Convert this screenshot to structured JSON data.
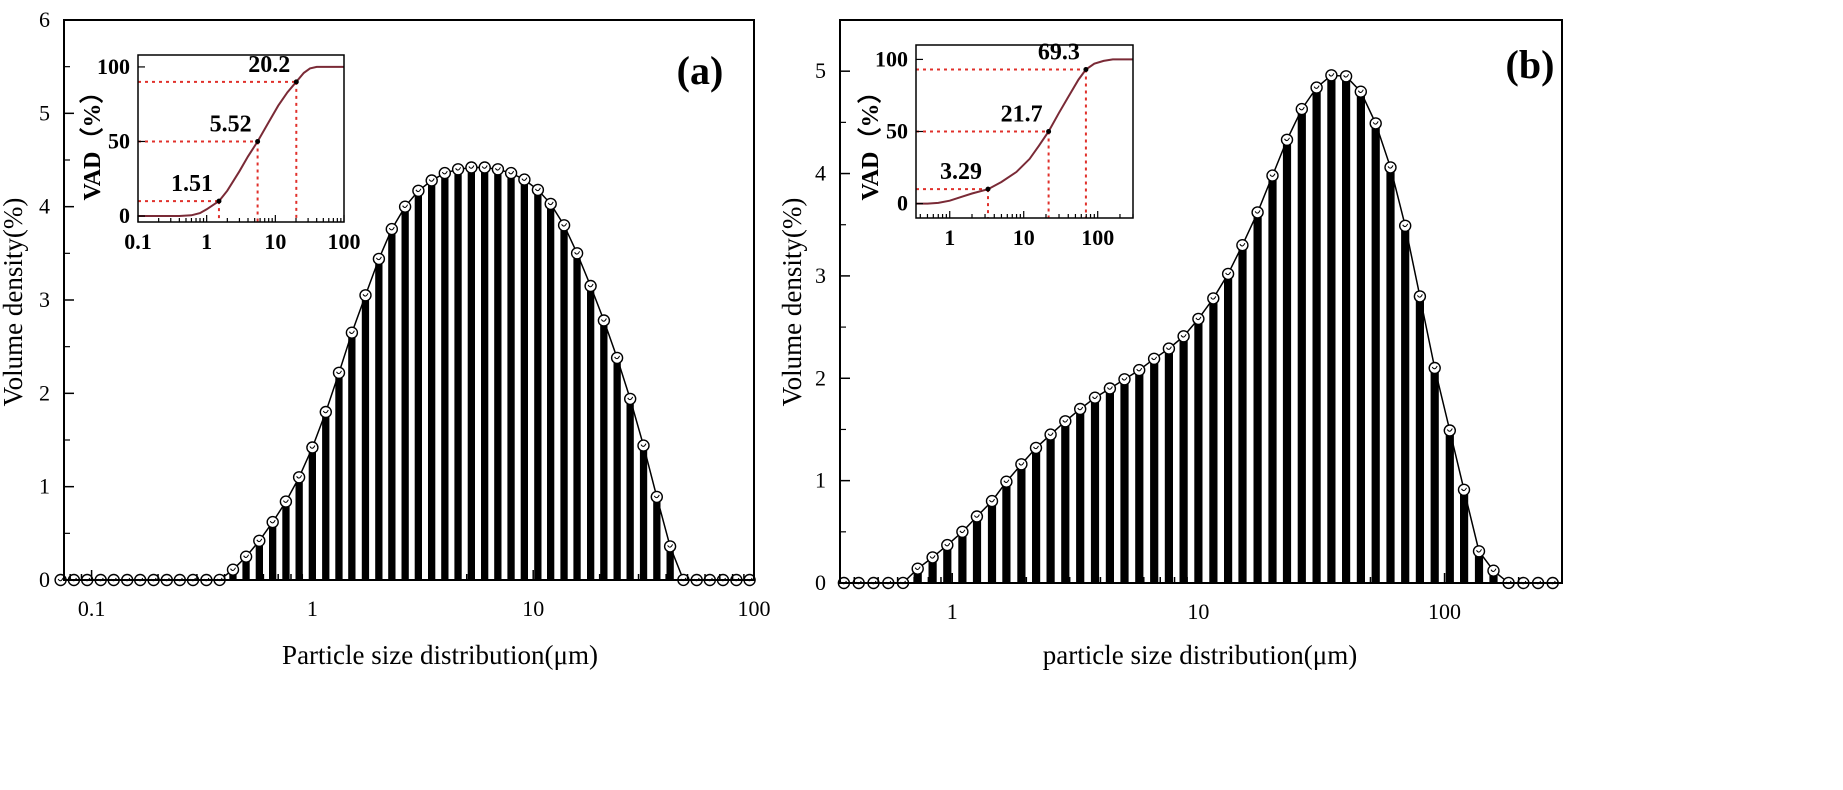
{
  "chart_data": [
    {
      "panel": "(a)",
      "type": "bar",
      "xlabel": "Particle size distribution(μm)",
      "ylabel": "Volume density(%)",
      "xscale": "log",
      "xlim": [
        0.075,
        100
      ],
      "ylim": [
        0,
        6
      ],
      "xticks": [
        "0.1",
        "1",
        "10",
        "100"
      ],
      "yticks": [
        "0",
        "1",
        "2",
        "3",
        "4",
        "5",
        "6"
      ],
      "x": [
        0.0724,
        0.0832,
        0.0955,
        0.11,
        0.126,
        0.145,
        0.166,
        0.191,
        0.219,
        0.251,
        0.288,
        0.331,
        0.38,
        0.437,
        0.501,
        0.575,
        0.661,
        0.759,
        0.871,
        1.0,
        1.15,
        1.32,
        1.51,
        1.74,
        2.0,
        2.29,
        2.63,
        3.02,
        3.47,
        3.98,
        4.57,
        5.25,
        6.03,
        6.92,
        7.94,
        9.12,
        10.5,
        12.0,
        13.8,
        15.8,
        18.2,
        20.9,
        24.0,
        27.5,
        31.6,
        36.3,
        41.7,
        47.9,
        55.0,
        63.1,
        72.4,
        83.2,
        95.5
      ],
      "values": [
        0,
        0,
        0,
        0,
        0,
        0,
        0,
        0,
        0,
        0,
        0,
        0,
        0.001,
        0.11,
        0.25,
        0.42,
        0.62,
        0.84,
        1.1,
        1.42,
        1.8,
        2.22,
        2.65,
        3.05,
        3.44,
        3.76,
        4.0,
        4.17,
        4.28,
        4.36,
        4.4,
        4.42,
        4.42,
        4.4,
        4.36,
        4.29,
        4.18,
        4.03,
        3.8,
        3.5,
        3.15,
        2.78,
        2.38,
        1.94,
        1.44,
        0.89,
        0.36,
        0.001,
        0,
        0,
        0,
        0,
        0
      ],
      "inset": {
        "type": "line",
        "ylabel": "VAD（%）",
        "xscale": "log",
        "xlim": [
          0.1,
          100
        ],
        "ylim": [
          -4,
          108
        ],
        "xticks": [
          "0.1",
          "1",
          "10",
          "100"
        ],
        "yticks": [
          "0",
          "50",
          "100"
        ],
        "curve_x": [
          0.1,
          0.2,
          0.4,
          0.6,
          0.8,
          1.0,
          1.3,
          1.51,
          2.0,
          3.0,
          4.0,
          5.52,
          8.0,
          11.0,
          15.0,
          20.2,
          26.0,
          32.0,
          40.0,
          50.0,
          100
        ],
        "curve_y": [
          0,
          0,
          0,
          0.5,
          2,
          4.5,
          8,
          10,
          17,
          30,
          40,
          50,
          63,
          74,
          83,
          90,
          96,
          99,
          100,
          100,
          100
        ],
        "markers": [
          {
            "label": "1.51",
            "x": 1.51,
            "y": 10
          },
          {
            "label": "5.52",
            "x": 5.52,
            "y": 50
          },
          {
            "label": "20.2",
            "x": 20.2,
            "y": 90
          }
        ]
      }
    },
    {
      "panel": "(b)",
      "type": "bar",
      "xlabel": "particle size distribution(μm)",
      "ylabel": "Volume density(%)",
      "xscale": "log",
      "xlim": [
        0.35,
        300
      ],
      "ylim": [
        0,
        5.5
      ],
      "xticks": [
        "1",
        "10",
        "100"
      ],
      "yticks": [
        "0",
        "1",
        "2",
        "3",
        "4",
        "5"
      ],
      "x": [
        0.363,
        0.417,
        0.479,
        0.55,
        0.631,
        0.724,
        0.832,
        0.955,
        1.1,
        1.26,
        1.45,
        1.66,
        1.91,
        2.19,
        2.51,
        2.88,
        3.31,
        3.8,
        4.37,
        5.01,
        5.75,
        6.61,
        7.59,
        8.71,
        10.0,
        11.5,
        13.2,
        15.1,
        17.4,
        20.0,
        22.9,
        26.3,
        30.2,
        34.7,
        39.8,
        45.7,
        52.5,
        60.3,
        69.2,
        79.4,
        91.2,
        105,
        120,
        138,
        158,
        182,
        209,
        240,
        275
      ],
      "values": [
        0,
        0,
        0,
        0,
        0.001,
        0.14,
        0.25,
        0.37,
        0.5,
        0.65,
        0.8,
        0.99,
        1.16,
        1.32,
        1.45,
        1.58,
        1.7,
        1.81,
        1.9,
        1.99,
        2.08,
        2.19,
        2.29,
        2.41,
        2.58,
        2.78,
        3.02,
        3.3,
        3.62,
        3.98,
        4.33,
        4.63,
        4.84,
        4.96,
        4.95,
        4.8,
        4.49,
        4.06,
        3.49,
        2.8,
        2.1,
        1.49,
        0.91,
        0.31,
        0.12,
        0.001,
        0,
        0,
        0
      ],
      "inset": {
        "type": "line",
        "ylabel": "VAD（%）",
        "xscale": "log",
        "xlim": [
          0.35,
          300
        ],
        "ylim": [
          -10,
          110
        ],
        "xticks": [
          "1",
          "10",
          "100"
        ],
        "yticks": [
          "0",
          "50",
          "100"
        ],
        "curve_x": [
          0.35,
          0.5,
          0.7,
          1.0,
          1.5,
          2.0,
          3.29,
          5.0,
          8.0,
          12.0,
          16.0,
          21.7,
          30.0,
          40.0,
          55.0,
          69.3,
          90.0,
          120,
          160,
          200,
          300
        ],
        "curve_y": [
          0,
          0,
          0.5,
          2,
          5,
          7,
          10,
          15,
          22,
          31,
          40,
          50,
          63,
          74,
          86,
          93,
          97,
          99,
          100,
          100,
          100
        ],
        "markers": [
          {
            "label": "3.29",
            "x": 3.29,
            "y": 10
          },
          {
            "label": "21.7",
            "x": 21.7,
            "y": 50
          },
          {
            "label": "69.3",
            "x": 69.3,
            "y": 93
          }
        ]
      }
    }
  ]
}
